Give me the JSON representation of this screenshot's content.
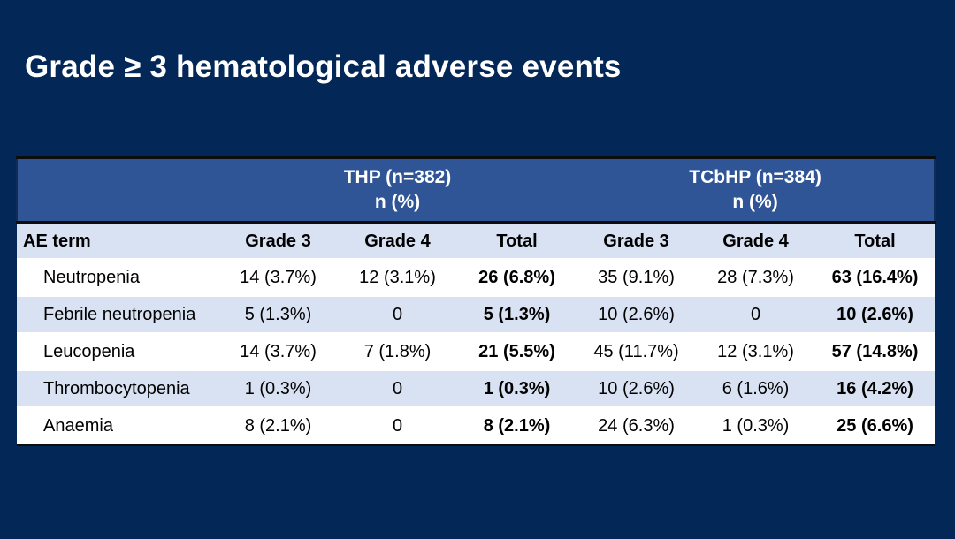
{
  "slide": {
    "title": "Grade ≥ 3 hematological adverse events"
  },
  "colors": {
    "background": "#032757",
    "header_band": "#2F5597",
    "row_light": "#D9E2F3",
    "row_white": "#FFFFFF",
    "rule_line": "#0D0D0D",
    "title_text": "#FFFFFF",
    "body_text": "#000000"
  },
  "table": {
    "groups": [
      {
        "label": "THP (n=382)",
        "sublabel": "n (%)"
      },
      {
        "label": "TCbHP (n=384)",
        "sublabel": "n (%)"
      }
    ],
    "columns": [
      "AE term",
      "Grade 3",
      "Grade 4",
      "Total",
      "Grade 3",
      "Grade 4",
      "Total"
    ],
    "rows": [
      {
        "ae_term": "Neutropenia",
        "values": [
          "14 (3.7%)",
          "12 (3.1%)",
          "26 (6.8%)",
          "35 (9.1%)",
          "28 (7.3%)",
          "63 (16.4%)"
        ]
      },
      {
        "ae_term": "Febrile neutropenia",
        "values": [
          "5 (1.3%)",
          "0",
          "5 (1.3%)",
          "10 (2.6%)",
          "0",
          "10 (2.6%)"
        ]
      },
      {
        "ae_term": "Leucopenia",
        "values": [
          "14 (3.7%)",
          "7 (1.8%)",
          "21 (5.5%)",
          "45 (11.7%)",
          "12 (3.1%)",
          "57 (14.8%)"
        ]
      },
      {
        "ae_term": "Thrombocytopenia",
        "values": [
          "1 (0.3%)",
          "0",
          "1 (0.3%)",
          "10 (2.6%)",
          "6 (1.6%)",
          "16 (4.2%)"
        ]
      },
      {
        "ae_term": "Anaemia",
        "values": [
          "8 (2.1%)",
          "0",
          "8 (2.1%)",
          "24 (6.3%)",
          "1 (0.3%)",
          "25 (6.6%)"
        ]
      }
    ]
  }
}
